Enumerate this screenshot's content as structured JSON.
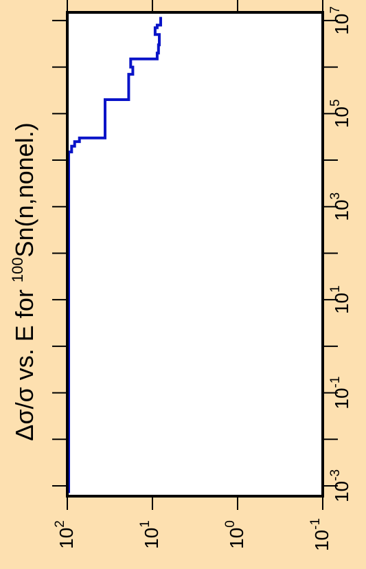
{
  "chart_data": {
    "type": "line",
    "title": "Δσ/σ vs. E for ¹⁰⁰Sn(n,nonel.)",
    "title_parts": {
      "pre": "Δσ/σ vs. E for ",
      "sup": "100",
      "post": "Sn(n,nonel.)"
    },
    "orientation": "rotated-90",
    "energy_axis": {
      "scale": "log",
      "range": [
        0.0006,
        15000000
      ],
      "ticks": [
        {
          "value": 0.001,
          "base": "10",
          "exp": "-3"
        },
        {
          "value": 0.1,
          "base": "10",
          "exp": "-1"
        },
        {
          "value": 10,
          "base": "10",
          "exp": "1"
        },
        {
          "value": 1000,
          "base": "10",
          "exp": "3"
        },
        {
          "value": 100000,
          "base": "10",
          "exp": "5"
        },
        {
          "value": 10000000,
          "base": "10",
          "exp": "7"
        }
      ],
      "minor_ticks": [
        0.01,
        1,
        100,
        10000,
        1000000
      ]
    },
    "uncertainty_axis": {
      "scale": "log",
      "direction": "reversed",
      "range": [
        0.1,
        100
      ],
      "ticks": [
        {
          "value": 100,
          "base": "10",
          "exp": "2"
        },
        {
          "value": 10,
          "base": "10",
          "exp": "1"
        },
        {
          "value": 1,
          "base": "10",
          "exp": "0"
        },
        {
          "value": 0.1,
          "base": "10",
          "exp": "-1"
        }
      ]
    },
    "series": [
      {
        "color": "#0a14c8",
        "points": [
          [
            0.0007,
            100
          ],
          [
            15000,
            100
          ],
          [
            15000,
            89
          ],
          [
            20000,
            89
          ],
          [
            20000,
            82
          ],
          [
            25000,
            82
          ],
          [
            25000,
            72
          ],
          [
            30000,
            72
          ],
          [
            30000,
            36
          ],
          [
            200000,
            36
          ],
          [
            200000,
            19
          ],
          [
            700000,
            19
          ],
          [
            700000,
            17
          ],
          [
            1000000,
            17
          ],
          [
            1000000,
            18
          ],
          [
            1500000,
            18
          ],
          [
            1500000,
            8.8
          ],
          [
            2000000,
            8.8
          ],
          [
            2000000,
            8.5
          ],
          [
            3000000,
            8.5
          ],
          [
            3000000,
            8.3
          ],
          [
            5000000,
            8.3
          ],
          [
            5000000,
            9.3
          ],
          [
            7000000,
            9.3
          ],
          [
            7000000,
            8.8
          ],
          [
            8000000,
            8.8
          ],
          [
            8000000,
            8.0
          ],
          [
            12000000,
            8.0
          ]
        ]
      }
    ],
    "grid": false
  }
}
